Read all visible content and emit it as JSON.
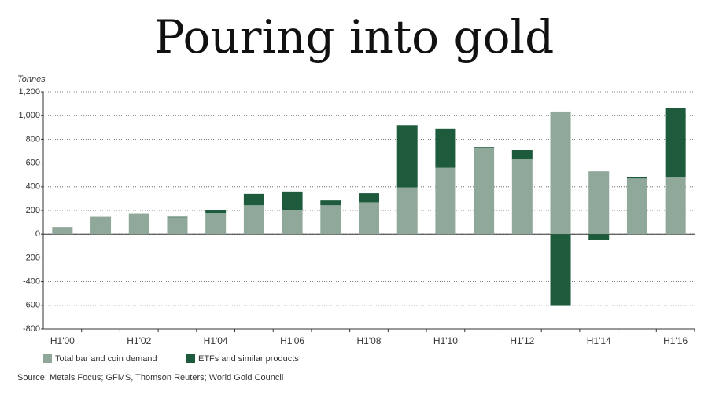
{
  "chart_data": {
    "type": "bar",
    "stacked": true,
    "title": "Pouring into gold",
    "y_label": "Tonnes",
    "source": "Source: Metals Focus; GFMS, Thomson Reuters; World Gold Council",
    "categories": [
      "H1'00",
      null,
      "H1'02",
      null,
      "H1'04",
      null,
      "H1'06",
      null,
      "H1'08",
      null,
      "H1'10",
      null,
      "H1'12",
      null,
      "H1'14",
      null,
      "H1'16"
    ],
    "series": [
      {
        "name": "Total bar and coin demand",
        "color": "#8fa89a",
        "values": [
          60,
          150,
          170,
          145,
          180,
          245,
          200,
          245,
          270,
          395,
          560,
          725,
          630,
          1035,
          530,
          470,
          480
        ]
      },
      {
        "name": "ETFs and similar products",
        "color": "#1e5a3c",
        "values": [
          0,
          0,
          5,
          5,
          20,
          95,
          160,
          40,
          75,
          525,
          330,
          10,
          80,
          -605,
          -50,
          10,
          585
        ]
      }
    ],
    "ylim": [
      -800,
      1200
    ],
    "yticks": [
      -800,
      -600,
      -400,
      -200,
      0,
      200,
      400,
      600,
      800,
      {
        "value": 1000,
        "label": "1,000"
      },
      {
        "value": 1200,
        "label": "1,200"
      }
    ],
    "grid": true
  }
}
